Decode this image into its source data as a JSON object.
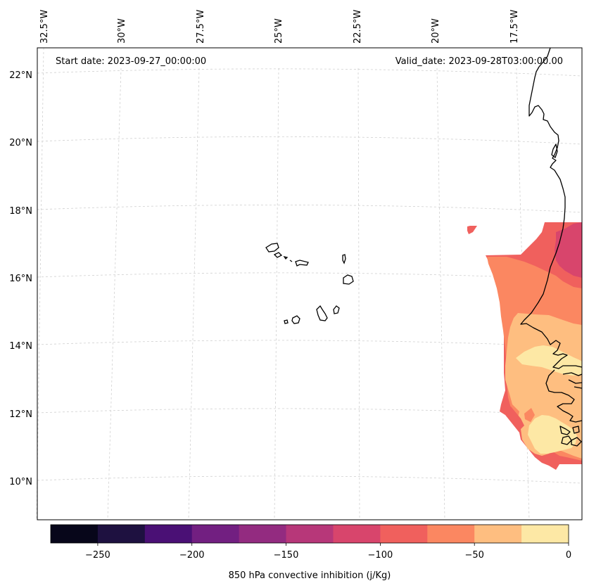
{
  "header": {
    "start_date": "Start date: 2023-09-27_00:00:00",
    "valid_date": "Valid_date: 2023-09-28T03:00:00.00"
  },
  "longitude_labels": [
    "32.5°W",
    "30°W",
    "27.5°W",
    "25°W",
    "22.5°W",
    "20°W",
    "17.5°W"
  ],
  "latitude_labels": [
    "22°N",
    "20°N",
    "18°N",
    "16°N",
    "14°N",
    "12°N",
    "10°N"
  ],
  "colorbar": {
    "label": "850 hPa convective inhibition (j/Kg)",
    "tick_labels": [
      "−250",
      "−200",
      "−150",
      "−100",
      "−50",
      "0"
    ],
    "bins": [
      {
        "min": -275,
        "max": -250,
        "color": "#07061a"
      },
      {
        "min": -250,
        "max": -225,
        "color": "#1e1140"
      },
      {
        "min": -225,
        "max": -200,
        "color": "#4a1075"
      },
      {
        "min": -200,
        "max": -175,
        "color": "#721f81"
      },
      {
        "min": -175,
        "max": -150,
        "color": "#932b80"
      },
      {
        "min": -150,
        "max": -125,
        "color": "#b73779"
      },
      {
        "min": -125,
        "max": -100,
        "color": "#d8456c"
      },
      {
        "min": -100,
        "max": -75,
        "color": "#f0605d"
      },
      {
        "min": -75,
        "max": -50,
        "color": "#fb8761"
      },
      {
        "min": -50,
        "max": -25,
        "color": "#febe80"
      },
      {
        "min": -25,
        "max": 0,
        "color": "#fde8a5"
      }
    ]
  },
  "colors": {
    "grid": "#d0d0d0",
    "coast": "#000000",
    "frame": "#000000"
  }
}
